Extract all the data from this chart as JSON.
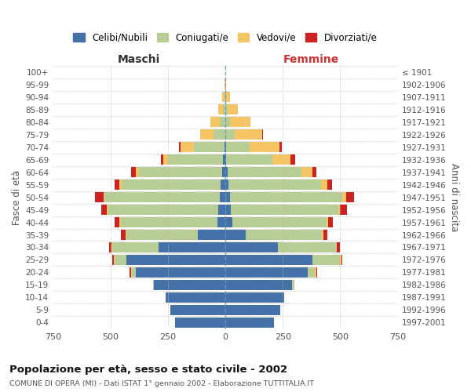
{
  "age_groups": [
    "0-4",
    "5-9",
    "10-14",
    "15-19",
    "20-24",
    "25-29",
    "30-34",
    "35-39",
    "40-44",
    "45-49",
    "50-54",
    "55-59",
    "60-64",
    "65-69",
    "70-74",
    "75-79",
    "80-84",
    "85-89",
    "90-94",
    "95-99",
    "100+"
  ],
  "birth_years": [
    "1997-2001",
    "1992-1996",
    "1987-1991",
    "1982-1986",
    "1977-1981",
    "1972-1976",
    "1967-1971",
    "1962-1966",
    "1957-1961",
    "1952-1956",
    "1947-1951",
    "1942-1946",
    "1937-1941",
    "1932-1936",
    "1927-1931",
    "1922-1926",
    "1917-1921",
    "1912-1916",
    "1907-1911",
    "1902-1906",
    "≤ 1901"
  ],
  "males": {
    "celibi": [
      220,
      240,
      260,
      310,
      390,
      430,
      290,
      120,
      35,
      30,
      25,
      20,
      15,
      10,
      5,
      0,
      0,
      0,
      0,
      0,
      0
    ],
    "coniugati": [
      0,
      0,
      0,
      5,
      15,
      50,
      200,
      310,
      420,
      480,
      500,
      430,
      360,
      240,
      130,
      50,
      25,
      10,
      5,
      0,
      0
    ],
    "vedovi": [
      0,
      0,
      0,
      0,
      5,
      5,
      5,
      5,
      5,
      5,
      5,
      10,
      15,
      20,
      60,
      60,
      40,
      20,
      8,
      3,
      0
    ],
    "divorziati": [
      0,
      0,
      0,
      0,
      5,
      5,
      10,
      20,
      20,
      25,
      35,
      20,
      20,
      10,
      5,
      0,
      0,
      0,
      0,
      0,
      0
    ]
  },
  "females": {
    "nubili": [
      210,
      240,
      255,
      290,
      360,
      380,
      230,
      90,
      30,
      25,
      20,
      15,
      10,
      5,
      5,
      0,
      0,
      0,
      0,
      0,
      0
    ],
    "coniugate": [
      0,
      0,
      0,
      10,
      30,
      120,
      250,
      330,
      410,
      465,
      490,
      400,
      320,
      200,
      100,
      40,
      20,
      10,
      5,
      0,
      0
    ],
    "vedove": [
      0,
      0,
      0,
      0,
      5,
      5,
      5,
      5,
      8,
      10,
      15,
      30,
      50,
      80,
      130,
      120,
      90,
      45,
      15,
      5,
      0
    ],
    "divorziate": [
      0,
      0,
      0,
      0,
      5,
      5,
      15,
      20,
      20,
      30,
      35,
      20,
      15,
      20,
      10,
      5,
      0,
      0,
      0,
      0,
      0
    ]
  },
  "colors": {
    "celibi": "#4472a8",
    "coniugati": "#b8cc96",
    "vedovi": "#f5c565",
    "divorziati": "#cc2222"
  },
  "title": "Popolazione per età, sesso e stato civile - 2002",
  "subtitle": "COMUNE DI OPERA (MI) - Dati ISTAT 1° gennaio 2002 - Elaborazione TUTTITALIA.IT",
  "xlabel_left": "Maschi",
  "xlabel_right": "Femmine",
  "ylabel_left": "Fasce di età",
  "ylabel_right": "Anni di nascita",
  "xlim": 750,
  "legend_labels": [
    "Celibi/Nubili",
    "Coniugati/e",
    "Vedovi/e",
    "Divorziati/e"
  ],
  "bg_color": "#ffffff",
  "grid_color": "#bbbbbb"
}
